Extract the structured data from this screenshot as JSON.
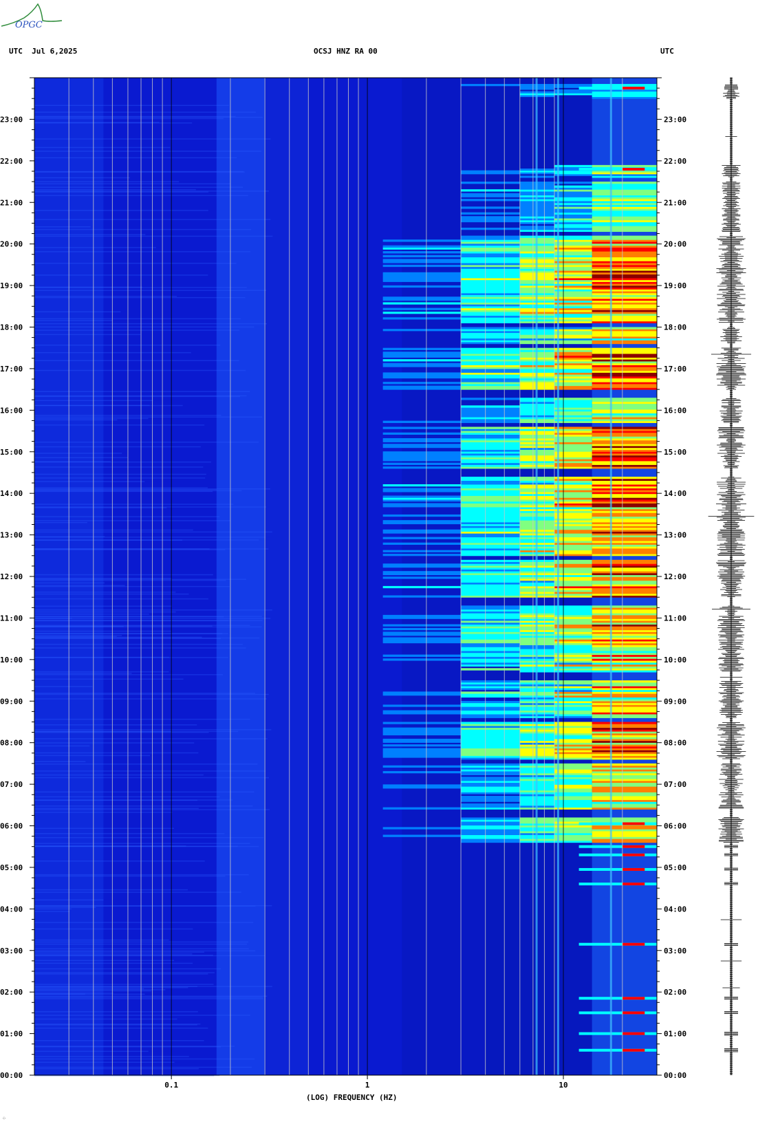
{
  "header": {
    "left": "UTC  Jul 6,2025",
    "center": "OCSJ HNZ RA 00",
    "right": "UTC"
  },
  "logo": {
    "text": "OPGC",
    "color": "#2e8b3a",
    "text_color": "#2a52be"
  },
  "chart_data": {
    "type": "heatmap",
    "title": "OCSJ HNZ RA 00",
    "xlabel": "(LOG) FREQUENCY (HZ)",
    "ylabel": "UTC",
    "x_scale": "log",
    "xlim": [
      0.02,
      30
    ],
    "x_ticks": [
      {
        "value": 0.1,
        "label": "0.1"
      },
      {
        "value": 1,
        "label": "1"
      },
      {
        "value": 10,
        "label": "10"
      }
    ],
    "y_ticks": [
      "00:00",
      "01:00",
      "02:00",
      "03:00",
      "04:00",
      "05:00",
      "06:00",
      "07:00",
      "08:00",
      "09:00",
      "10:00",
      "11:00",
      "12:00",
      "13:00",
      "14:00",
      "15:00",
      "16:00",
      "17:00",
      "18:00",
      "19:00",
      "20:00",
      "21:00",
      "22:00",
      "23:00"
    ],
    "ylim_hours": [
      0,
      24
    ],
    "colormap": [
      "#00008b",
      "#0000ff",
      "#0080ff",
      "#00ffff",
      "#80ff80",
      "#ffff00",
      "#ff8000",
      "#ff0000",
      "#8b0000"
    ],
    "active_hours": [
      {
        "from": 5.6,
        "to": 6.2,
        "level": 0.85
      },
      {
        "from": 6.4,
        "to": 7.5,
        "level": 0.8
      },
      {
        "from": 7.6,
        "to": 8.5,
        "level": 0.95
      },
      {
        "from": 8.6,
        "to": 9.5,
        "level": 0.8
      },
      {
        "from": 9.7,
        "to": 10.4,
        "level": 0.85
      },
      {
        "from": 10.4,
        "to": 11.3,
        "level": 0.9
      },
      {
        "from": 11.5,
        "to": 12.4,
        "level": 1.0
      },
      {
        "from": 12.5,
        "to": 13.4,
        "level": 0.95
      },
      {
        "from": 13.4,
        "to": 14.4,
        "level": 0.95
      },
      {
        "from": 14.6,
        "to": 15.6,
        "level": 0.95
      },
      {
        "from": 15.7,
        "to": 16.3,
        "level": 0.75
      },
      {
        "from": 16.5,
        "to": 17.5,
        "level": 1.0
      },
      {
        "from": 17.6,
        "to": 18.0,
        "level": 0.8
      },
      {
        "from": 18.1,
        "to": 19.5,
        "level": 1.0
      },
      {
        "from": 19.5,
        "to": 20.2,
        "level": 0.95
      },
      {
        "from": 20.3,
        "to": 21.5,
        "level": 0.6
      },
      {
        "from": 21.6,
        "to": 21.9,
        "level": 0.55
      },
      {
        "from": 23.5,
        "to": 23.85,
        "level": 0.5
      }
    ],
    "events_hours": [
      0.6,
      1.0,
      1.5,
      1.85,
      3.15,
      4.6,
      4.95,
      5.3,
      5.5,
      6.05,
      21.8,
      23.75
    ],
    "grid": true
  },
  "footer": {
    "mark": "⁘"
  }
}
